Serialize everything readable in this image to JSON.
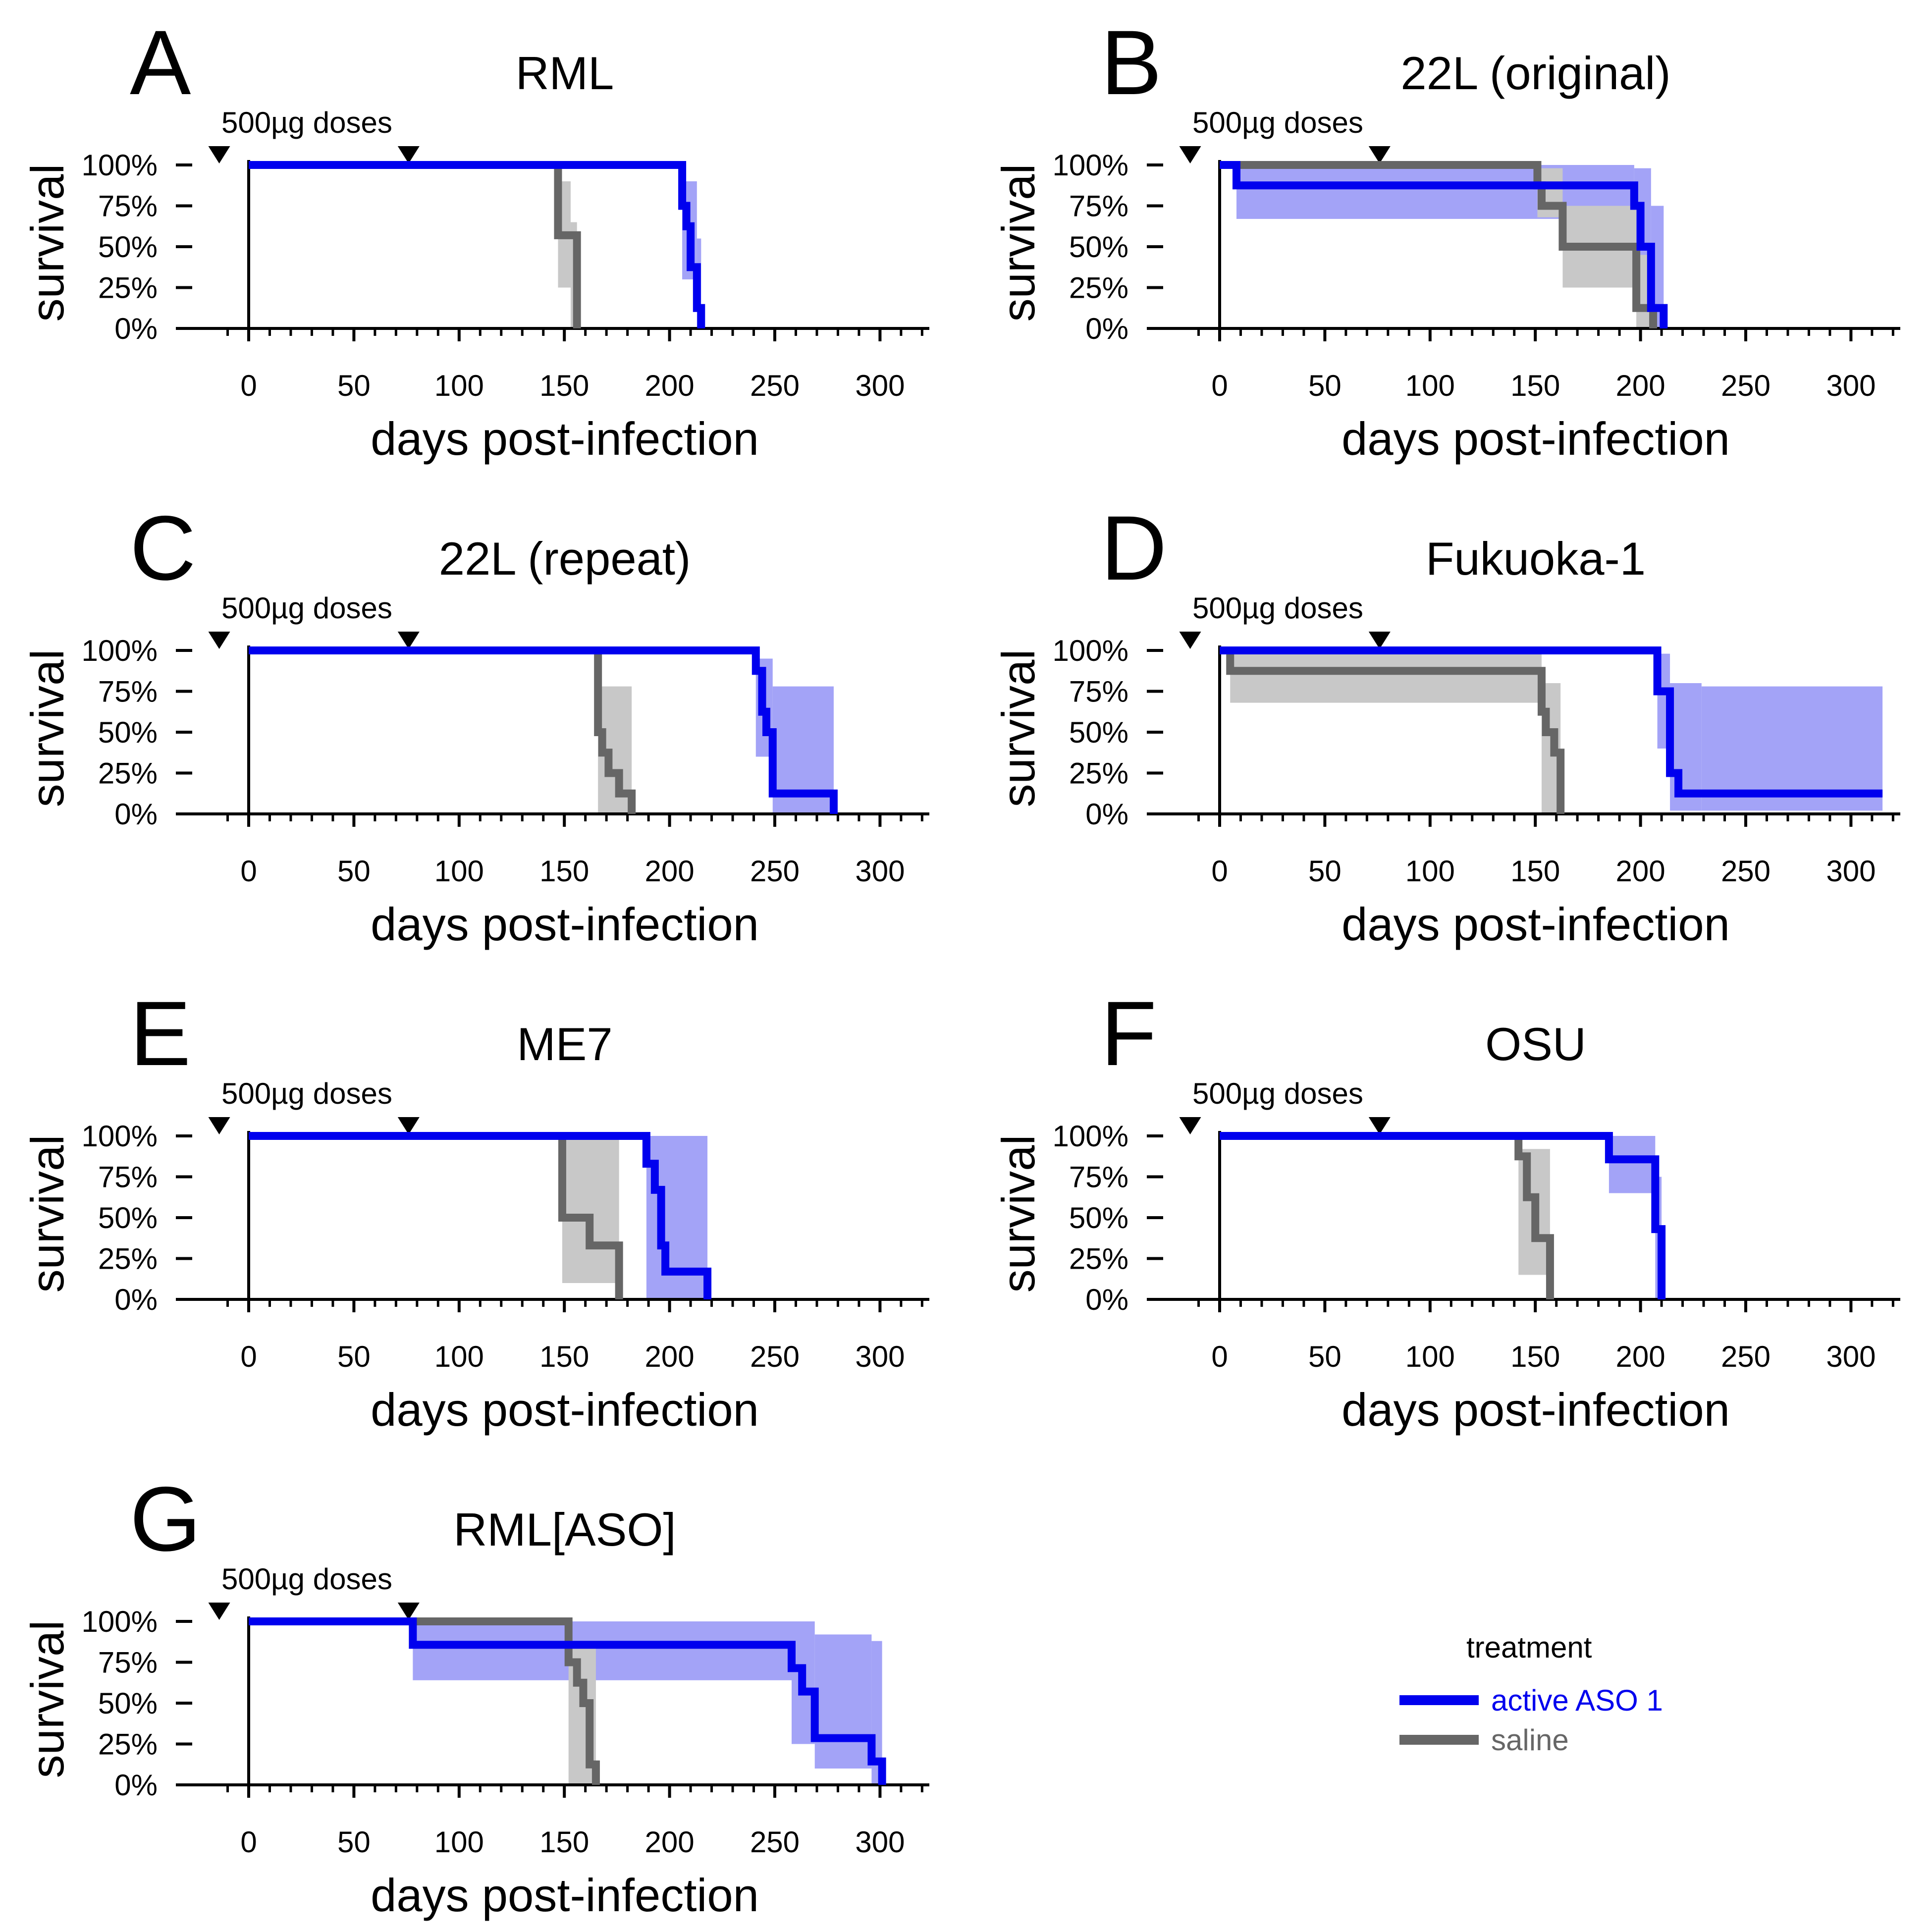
{
  "colors": {
    "active": "#0000ee",
    "active_ci": "#a3a3f7",
    "saline": "#666666",
    "saline_ci": "#c8c8c8"
  },
  "doses": {
    "label": "500µg doses",
    "days": [
      -14,
      76
    ]
  },
  "legend": {
    "title": "treatment",
    "items": [
      {
        "label": "active ASO 1",
        "color": "#0000ee"
      },
      {
        "label": "saline",
        "color": "#666666"
      }
    ]
  },
  "chart_data": [
    {
      "type": "line",
      "panel": "A",
      "title": "RML",
      "xlabel": "days post-infection",
      "ylabel": "survival",
      "xlim": [
        -15,
        322
      ],
      "ylim": [
        0,
        1
      ],
      "xticks": [
        "0",
        "50",
        "100",
        "150",
        "200",
        "250",
        "300"
      ],
      "yticks": [
        "0%",
        "25%",
        "50%",
        "75%",
        "100%"
      ],
      "series": [
        {
          "name": "active ASO 1",
          "x": [
            0,
            206,
            208,
            210,
            213,
            215
          ],
          "y": [
            1,
            0.75,
            0.625,
            0.375,
            0.125,
            0
          ],
          "ci": [
            [
              0,
              206,
              1,
              1
            ],
            [
              206,
              213,
              0.3,
              0.9
            ],
            [
              213,
              215,
              0,
              0.55
            ]
          ]
        },
        {
          "name": "saline",
          "x": [
            0,
            147,
            153,
            156
          ],
          "y": [
            1,
            0.57,
            0.57,
            0
          ],
          "ci": [
            [
              147,
              153,
              0.25,
              0.9
            ],
            [
              153,
              156,
              0,
              0.65
            ]
          ]
        }
      ]
    },
    {
      "type": "line",
      "panel": "B",
      "title": "22L (original)",
      "xlabel": "days post-infection",
      "ylabel": "survival",
      "xlim": [
        -15,
        322
      ],
      "ylim": [
        0,
        1
      ],
      "xticks": [
        "0",
        "50",
        "100",
        "150",
        "200",
        "250",
        "300"
      ],
      "yticks": [
        "0%",
        "25%",
        "50%",
        "75%",
        "100%"
      ],
      "series": [
        {
          "name": "active ASO 1",
          "x": [
            0,
            8,
            197,
            200,
            205,
            209,
            211
          ],
          "y": [
            1,
            0.875,
            0.75,
            0.5,
            0.125,
            0.125,
            0
          ],
          "ci": [
            [
              8,
              197,
              0.67,
              1
            ],
            [
              197,
              205,
              0.4,
              0.98
            ],
            [
              205,
              211,
              0,
              0.75
            ]
          ]
        },
        {
          "name": "saline",
          "x": [
            0,
            151,
            153,
            163,
            198,
            203,
            206
          ],
          "y": [
            1,
            0.875,
            0.75,
            0.5,
            0.125,
            0.125,
            0
          ],
          "ci": [
            [
              151,
              163,
              0.68,
              0.98
            ],
            [
              163,
              198,
              0.25,
              0.75
            ],
            [
              198,
              206,
              0,
              0.45
            ]
          ]
        }
      ]
    },
    {
      "type": "line",
      "panel": "C",
      "title": "22L (repeat)",
      "xlabel": "days post-infection",
      "ylabel": "survival",
      "xlim": [
        -15,
        322
      ],
      "ylim": [
        0,
        1
      ],
      "xticks": [
        "0",
        "50",
        "100",
        "150",
        "200",
        "250",
        "300"
      ],
      "yticks": [
        "0%",
        "25%",
        "50%",
        "75%",
        "100%"
      ],
      "series": [
        {
          "name": "active ASO 1",
          "x": [
            0,
            241,
            244,
            246,
            249,
            278
          ],
          "y": [
            1,
            0.875,
            0.625,
            0.5,
            0.125,
            0
          ],
          "ci": [
            [
              241,
              249,
              0.35,
              0.95
            ],
            [
              249,
              278,
              0,
              0.78
            ]
          ]
        },
        {
          "name": "saline",
          "x": [
            0,
            166,
            168,
            171,
            176,
            182
          ],
          "y": [
            1,
            0.5,
            0.375,
            0.25,
            0.125,
            0
          ],
          "ci": [
            [
              166,
              182,
              0,
              0.78
            ]
          ]
        }
      ]
    },
    {
      "type": "line",
      "panel": "D",
      "title": "Fukuoka-1",
      "xlabel": "days post-infection",
      "ylabel": "survival",
      "xlim": [
        -15,
        322
      ],
      "ylim": [
        0,
        1
      ],
      "xticks": [
        "0",
        "50",
        "100",
        "150",
        "200",
        "250",
        "300"
      ],
      "yticks": [
        "0%",
        "25%",
        "50%",
        "75%",
        "100%"
      ],
      "series": [
        {
          "name": "active ASO 1",
          "x": [
            0,
            208,
            214,
            218,
            229,
            315
          ],
          "y": [
            1,
            0.75,
            0.25,
            0.125,
            0.125,
            0.125
          ],
          "ci": [
            [
              208,
              214,
              0.4,
              0.98
            ],
            [
              214,
              229,
              0.02,
              0.8
            ],
            [
              229,
              315,
              0.02,
              0.78
            ]
          ]
        },
        {
          "name": "saline",
          "x": [
            0,
            5,
            153,
            155,
            159,
            162
          ],
          "y": [
            1,
            0.875,
            0.625,
            0.5,
            0.375,
            0
          ],
          "ci": [
            [
              5,
              153,
              0.68,
              1
            ],
            [
              153,
              162,
              0,
              0.8
            ]
          ]
        }
      ]
    },
    {
      "type": "line",
      "panel": "E",
      "title": "ME7",
      "xlabel": "days post-infection",
      "ylabel": "survival",
      "xlim": [
        -15,
        322
      ],
      "ylim": [
        0,
        1
      ],
      "xticks": [
        "0",
        "50",
        "100",
        "150",
        "200",
        "250",
        "300"
      ],
      "yticks": [
        "0%",
        "25%",
        "50%",
        "75%",
        "100%"
      ],
      "series": [
        {
          "name": "active ASO 1",
          "x": [
            0,
            189,
            193,
            196,
            198,
            218
          ],
          "y": [
            1,
            0.83,
            0.67,
            0.33,
            0.17,
            0
          ],
          "ci": [
            [
              189,
              218,
              0,
              1
            ]
          ]
        },
        {
          "name": "saline",
          "x": [
            0,
            149,
            162,
            176
          ],
          "y": [
            1,
            0.5,
            0.33,
            0
          ],
          "ci": [
            [
              149,
              176,
              0.1,
              1
            ]
          ]
        }
      ]
    },
    {
      "type": "line",
      "panel": "F",
      "title": "OSU",
      "xlabel": "days post-infection",
      "ylabel": "survival",
      "xlim": [
        -15,
        322
      ],
      "ylim": [
        0,
        1
      ],
      "xticks": [
        "0",
        "50",
        "100",
        "150",
        "200",
        "250",
        "300"
      ],
      "yticks": [
        "0%",
        "25%",
        "50%",
        "75%",
        "100%"
      ],
      "series": [
        {
          "name": "active ASO 1",
          "x": [
            0,
            185,
            207,
            210
          ],
          "y": [
            1,
            0.857,
            0.43,
            0
          ],
          "ci": [
            [
              185,
              207,
              0.65,
              1
            ],
            [
              207,
              210,
              0,
              0.75
            ]
          ]
        },
        {
          "name": "saline",
          "x": [
            0,
            142,
            146,
            150,
            157
          ],
          "y": [
            1,
            0.875,
            0.625,
            0.375,
            0
          ],
          "ci": [
            [
              142,
              157,
              0.15,
              0.92
            ]
          ]
        }
      ]
    },
    {
      "type": "line",
      "panel": "G",
      "title": "RML[ASO]",
      "xlabel": "days post-infection",
      "ylabel": "survival",
      "xlim": [
        -15,
        322
      ],
      "ylim": [
        0,
        1
      ],
      "xticks": [
        "0",
        "50",
        "100",
        "150",
        "200",
        "250",
        "300"
      ],
      "yticks": [
        "0%",
        "25%",
        "50%",
        "75%",
        "100%"
      ],
      "series": [
        {
          "name": "active ASO 1",
          "x": [
            0,
            78,
            258,
            263,
            269,
            296,
            301
          ],
          "y": [
            1,
            0.857,
            0.714,
            0.571,
            0.286,
            0.143,
            0
          ],
          "ci": [
            [
              78,
              258,
              0.64,
              1
            ],
            [
              258,
              269,
              0.25,
              1
            ],
            [
              269,
              296,
              0.1,
              0.92
            ],
            [
              296,
              301,
              0,
              0.88
            ]
          ]
        },
        {
          "name": "saline",
          "x": [
            0,
            152,
            156,
            159,
            162,
            165
          ],
          "y": [
            1,
            0.75,
            0.625,
            0.5,
            0.125,
            0
          ],
          "ci": [
            [
              152,
              165,
              0,
              0.85
            ]
          ]
        }
      ]
    }
  ]
}
